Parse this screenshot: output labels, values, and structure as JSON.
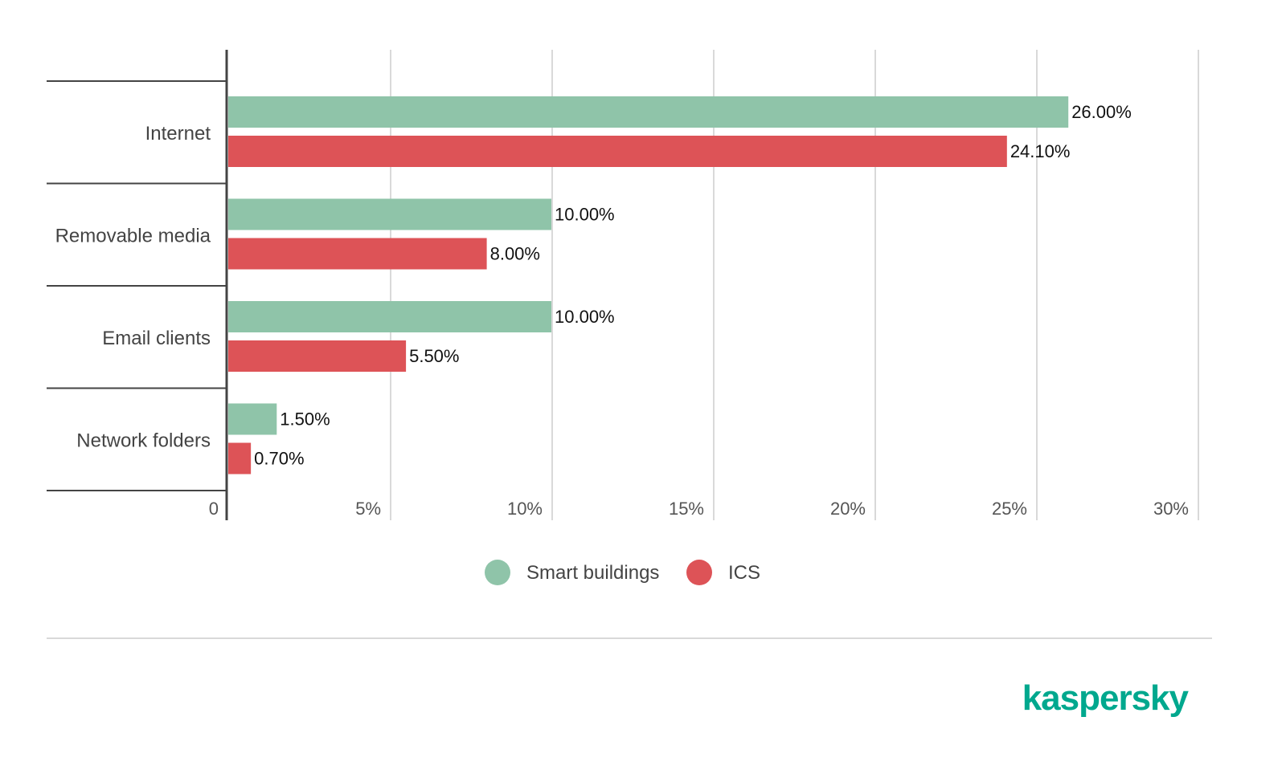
{
  "chart_data": {
    "type": "bar",
    "orientation": "horizontal",
    "categories": [
      "Internet",
      "Removable media",
      "Email clients",
      "Network folders"
    ],
    "series": [
      {
        "name": "Smart buildings",
        "color": "#8fc4a9",
        "values": [
          26.0,
          10.0,
          10.0,
          1.5
        ]
      },
      {
        "name": "ICS",
        "color": "#dd5357",
        "values": [
          24.1,
          8.0,
          5.5,
          0.7
        ]
      }
    ],
    "data_labels": [
      [
        "26.00%",
        "10.00%",
        "10.00%",
        "1.50%"
      ],
      [
        "24.10%",
        "8.00%",
        "5.50%",
        "0.70%"
      ]
    ],
    "xlim": [
      0,
      30
    ],
    "x_ticks": [
      0,
      5,
      10,
      15,
      20,
      25,
      30
    ],
    "x_tick_labels": [
      "0",
      "5%",
      "10%",
      "15%",
      "20%",
      "25%",
      "30%"
    ],
    "grid": true,
    "legend_position": "bottom"
  },
  "brand": {
    "logo_text": "kaspersky",
    "color": "#00a88e"
  }
}
